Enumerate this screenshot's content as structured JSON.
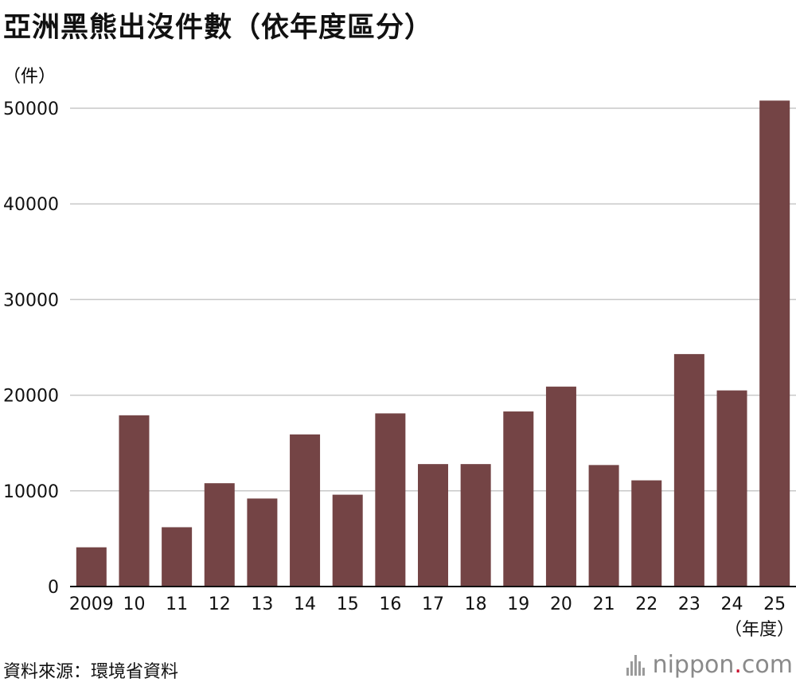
{
  "title": "亞洲黑熊出沒件數（依年度區分）",
  "source": "資料來源：環境省資料",
  "brand": {
    "pre": "nippon",
    "dot": ".",
    "post": "com"
  },
  "colors": {
    "bar": "#744445",
    "grid": "#c8c8c8",
    "axis": "#111111"
  },
  "chart_data": {
    "type": "bar",
    "title": "亞洲黑熊出沒件數（依年度區分）",
    "ylabel": "（件）",
    "xlabel": "（年度）",
    "ylim": [
      0,
      50000
    ],
    "yticks": [
      0,
      10000,
      20000,
      30000,
      40000,
      50000
    ],
    "grid": true,
    "categories": [
      "2009",
      "10",
      "11",
      "12",
      "13",
      "14",
      "15",
      "16",
      "17",
      "18",
      "19",
      "20",
      "21",
      "22",
      "23",
      "24",
      "25"
    ],
    "values": [
      4100,
      17900,
      6200,
      10800,
      9200,
      15900,
      9600,
      18100,
      12800,
      12800,
      18300,
      20900,
      12700,
      11100,
      24300,
      20500,
      50800
    ]
  }
}
